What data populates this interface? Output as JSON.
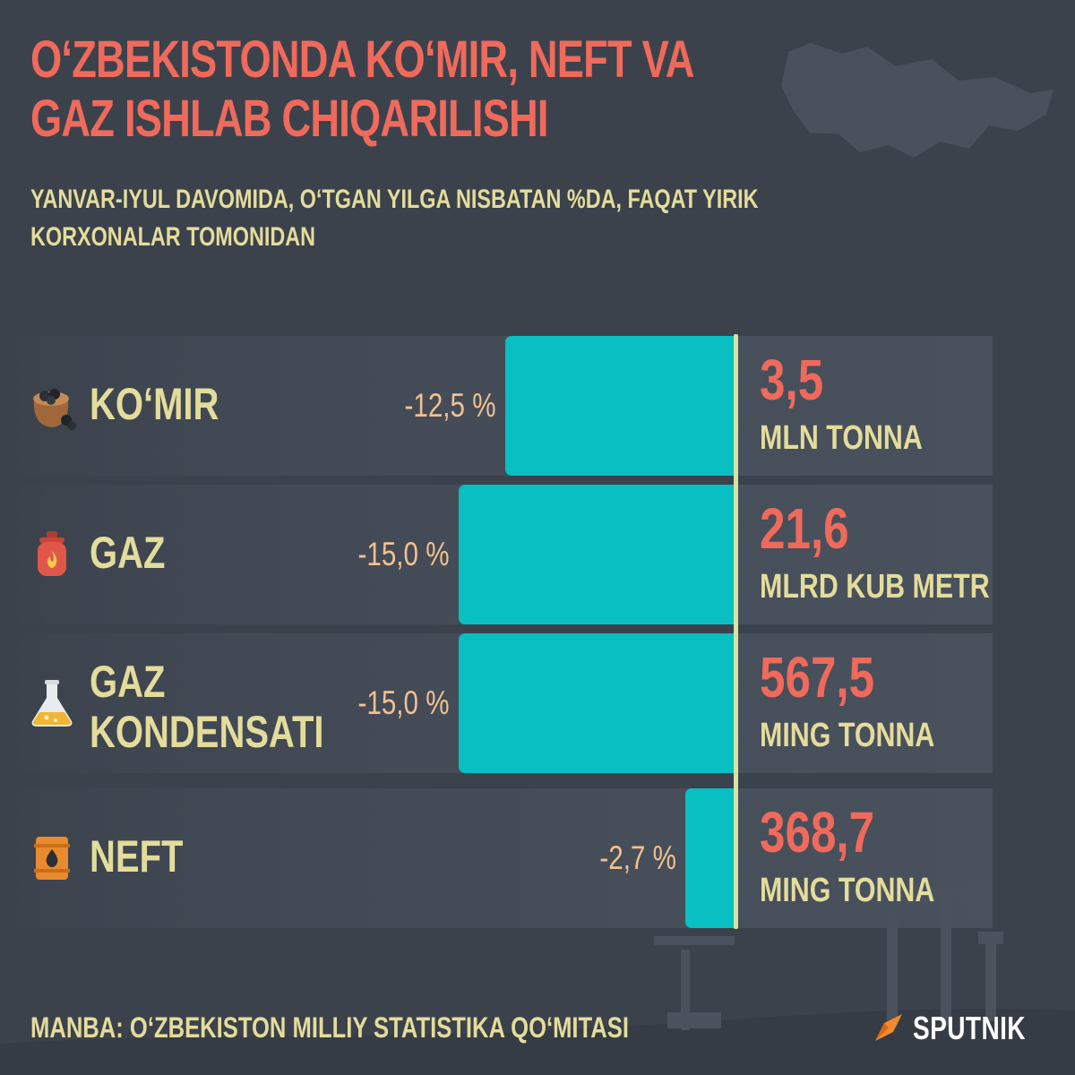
{
  "title": "O‘ZBEKISTONDA KO‘MIR, NEFT VA GAZ ISHLAB CHIQARILISHI",
  "subtitle": "YANVAR-IYUL DAVOMIDA, O‘TGAN YILGA NISBATAN %DA, FAQAT YIRIK KORXONALAR TOMONIDAN",
  "chart_data": {
    "type": "bar",
    "orientation": "horizontal",
    "direction": "negative-left",
    "categories": [
      "KO‘MIR",
      "GAZ",
      "GAZ KONDENSATI",
      "NEFT"
    ],
    "values": [
      -12.5,
      -15.0,
      -15.0,
      -2.7
    ],
    "value_labels": [
      "-12,5 %",
      "-15,0 %",
      "-15,0 %",
      "-2,7 %"
    ],
    "unit": "%",
    "volumes": [
      {
        "value": "3,5",
        "unit": "MLN TONNA"
      },
      {
        "value": "21,6",
        "unit": "MLRD KUB METR"
      },
      {
        "value": "567,5",
        "unit": "MING TONNA"
      },
      {
        "value": "368,7",
        "unit": "MING TONNA"
      }
    ],
    "icons": [
      "coal-sack-icon",
      "gas-cylinder-icon",
      "flask-icon",
      "oil-barrel-icon"
    ],
    "colors": {
      "bar": "#08bfc1",
      "axis": "#d7e3a3",
      "value": "#f06a5b",
      "label": "#e4dc9b",
      "percent": "#f2c08f"
    }
  },
  "colors": {
    "background": "#3b424c",
    "title": "#f06a5b",
    "text": "#e4dc9b"
  },
  "source": "MANBA: O‘ZBEKISTON MILLIY STATISTIKA QO‘MITASI",
  "brand": {
    "name": "SPUTNIK",
    "logo_icon": "sputnik-logo-icon"
  }
}
